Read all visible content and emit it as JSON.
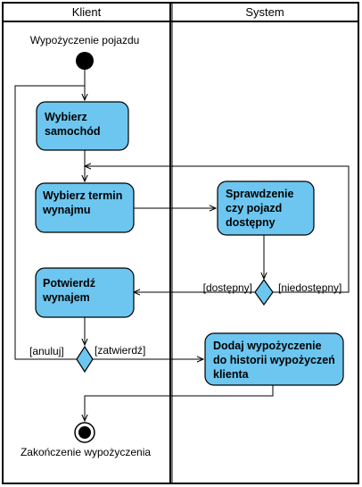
{
  "lanes": {
    "left": "Klient",
    "right": "System"
  },
  "start_label": "Wypożyczenie pojazdu",
  "end_label": "Zakończenie wypożyczenia",
  "activities": {
    "wybierz_samochod": [
      "Wybierz",
      "samochód"
    ],
    "wybierz_termin": [
      "Wybierz termin",
      "wynajmu"
    ],
    "sprawdzenie": [
      "Sprawdzenie",
      "czy pojazd",
      "dostępny"
    ],
    "potwierdz": [
      "Potwierdź",
      "wynajem"
    ],
    "dodaj": [
      "Dodaj wypożyczenie",
      "do historii wypożyczeń",
      "klienta"
    ]
  },
  "guards": {
    "dostepny": "[dostępny]",
    "niedostepny": "[niedostępny]",
    "anuluj": "[anuluj]",
    "zatwierdz": "[zatwierdź]"
  },
  "colors": {
    "activity_fill": "#6cc6ef",
    "stroke": "#000000"
  }
}
